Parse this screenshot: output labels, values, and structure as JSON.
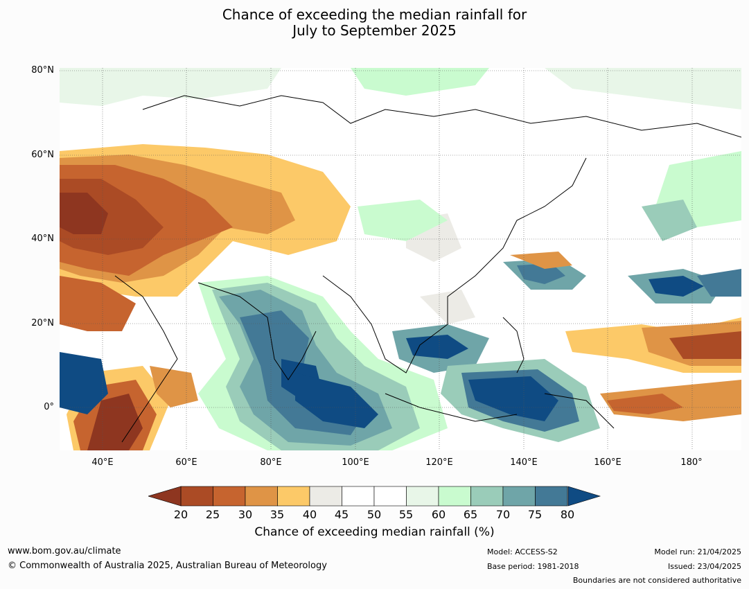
{
  "title_line1": "Chance of exceeding the median rainfall for",
  "title_line2": "July to September 2025",
  "lat_labels": [
    "80°N",
    "60°N",
    "40°N",
    "20°N",
    "0°"
  ],
  "lon_labels": [
    "40°E",
    "60°E",
    "80°E",
    "100°E",
    "120°E",
    "140°E",
    "160°E",
    "180°"
  ],
  "colorbar": {
    "ticks": [
      "20",
      "25",
      "30",
      "35",
      "40",
      "45",
      "50",
      "55",
      "60",
      "65",
      "70",
      "75",
      "80"
    ],
    "colors": [
      "#ab4b25",
      "#c6642f",
      "#df9446",
      "#fcc968",
      "#ecebe6",
      "#ffffff",
      "#ffffff",
      "#e8f6e8",
      "#c9fbcf",
      "#9accb9",
      "#6fa5a8",
      "#437996"
    ],
    "low_color": "#8e3620",
    "high_color": "#0f4b83",
    "label": "Chance of exceeding median rainfall (%)"
  },
  "footer": {
    "website": "www.bom.gov.au/climate",
    "copyright": "© Commonwealth of Australia 2025, Australian Bureau of Meteorology",
    "model": "Model: ACCESS-S2",
    "base_period": "Base period: 1981-2018",
    "model_run": "Model run: 21/04/2025",
    "issued": "Issued: 23/04/2025",
    "disclaimer": "Boundaries are not considered authoritative"
  }
}
